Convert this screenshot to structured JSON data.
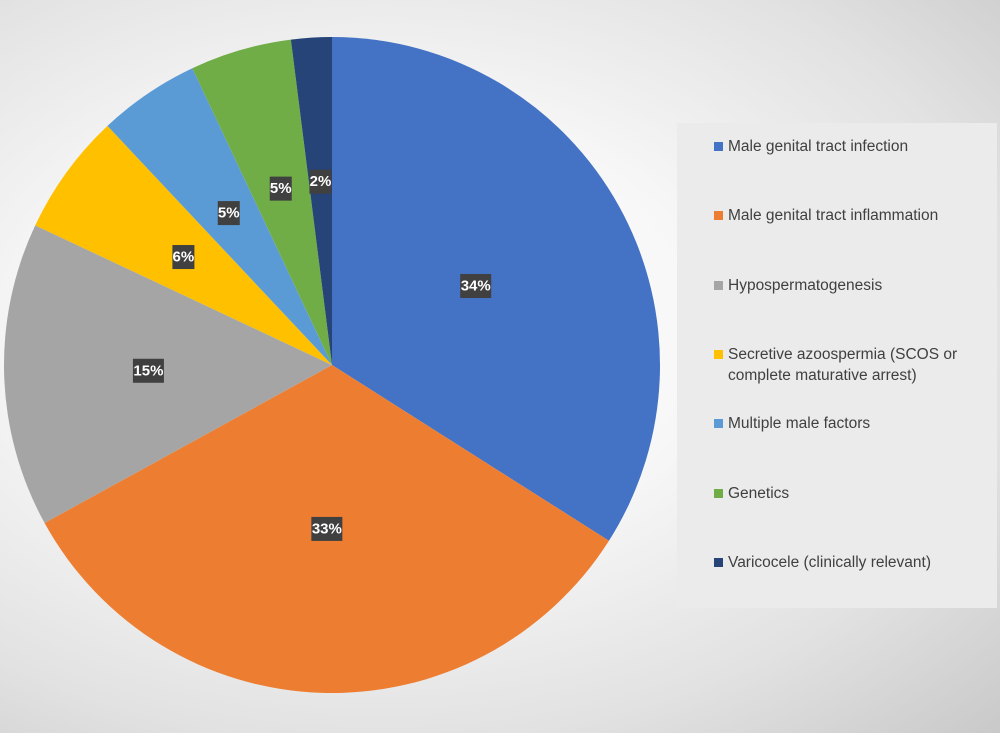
{
  "chart_data": {
    "type": "pie",
    "title": "",
    "start_angle_deg": 0,
    "direction": "clockwise",
    "legend_position": "right",
    "slices": [
      {
        "label": "Male genital tract infection",
        "value": 34,
        "display": "34%",
        "color": "#4472C4"
      },
      {
        "label": "Male genital tract inflammation",
        "value": 33,
        "display": "33%",
        "color": "#ED7D31"
      },
      {
        "label": "Hypospermatogenesis",
        "value": 15,
        "display": "15%",
        "color": "#A5A5A5"
      },
      {
        "label": "Secretive azoospermia (SCOS or complete maturative arrest)",
        "value": 6,
        "display": "6%",
        "color": "#FFC000"
      },
      {
        "label": "Multiple male factors",
        "value": 5,
        "display": "5%",
        "color": "#5B9BD5"
      },
      {
        "label": "Genetics",
        "value": 5,
        "display": "5%",
        "color": "#70AD47"
      },
      {
        "label": "Varicocele (clinically relevant)",
        "value": 2,
        "display": "2%",
        "color": "#264478"
      }
    ]
  },
  "legend": {
    "items": [
      {
        "label": "Male genital tract infection",
        "color": "#4472C4"
      },
      {
        "label": "Male genital tract inflammation",
        "color": "#ED7D31"
      },
      {
        "label": "Hypospermatogenesis",
        "color": "#A5A5A5"
      },
      {
        "label": "Secretive azoospermia (SCOS or complete maturative arrest)",
        "color": "#FFC000"
      },
      {
        "label": "Multiple male factors",
        "color": "#5B9BD5"
      },
      {
        "label": "Genetics",
        "color": "#70AD47"
      },
      {
        "label": "Varicocele (clinically relevant)",
        "color": "#264478"
      }
    ]
  }
}
